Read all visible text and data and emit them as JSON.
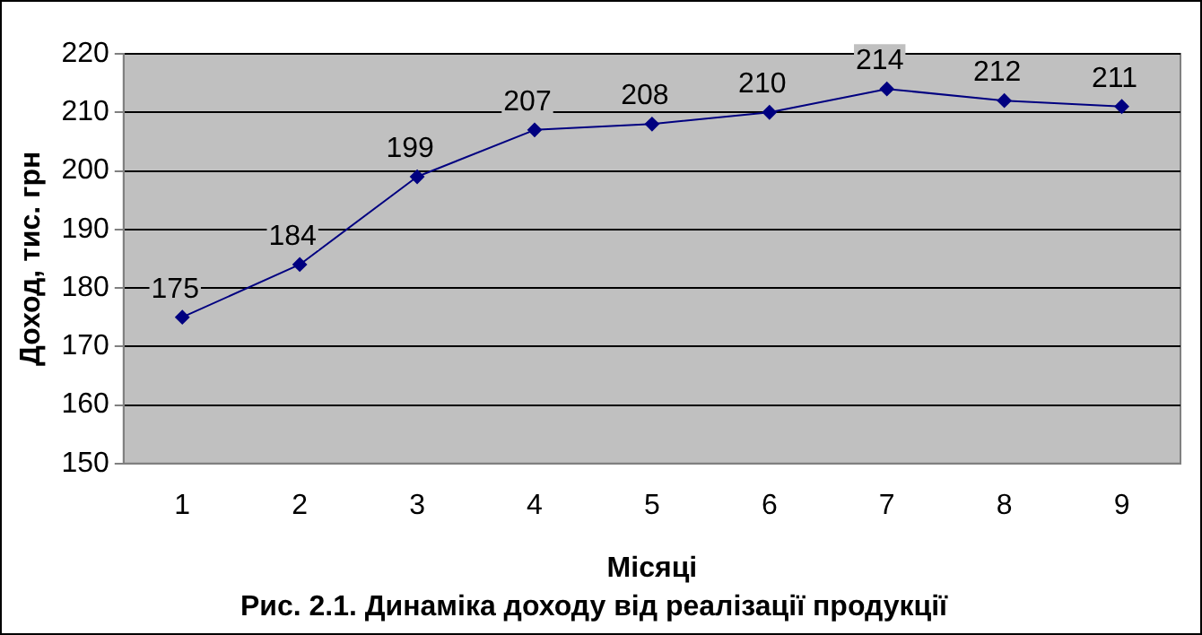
{
  "chart_data": {
    "type": "line",
    "title": "Рис. 2.1. Динаміка доходу від реалізації продукції",
    "xlabel": "Місяці",
    "ylabel": "Доход, тис. грн",
    "categories": [
      "1",
      "2",
      "3",
      "4",
      "5",
      "6",
      "7",
      "8",
      "9"
    ],
    "series": [
      {
        "color": "#000080",
        "values": [
          175,
          184,
          199,
          207,
          208,
          210,
          214,
          212,
          211
        ]
      }
    ],
    "ylim": [
      150,
      220
    ],
    "yticks": [
      150,
      160,
      170,
      180,
      190,
      200,
      210,
      220
    ],
    "grid": "y",
    "legend": false,
    "marker": "diamond",
    "line_style": "solid",
    "data_labels": true
  }
}
